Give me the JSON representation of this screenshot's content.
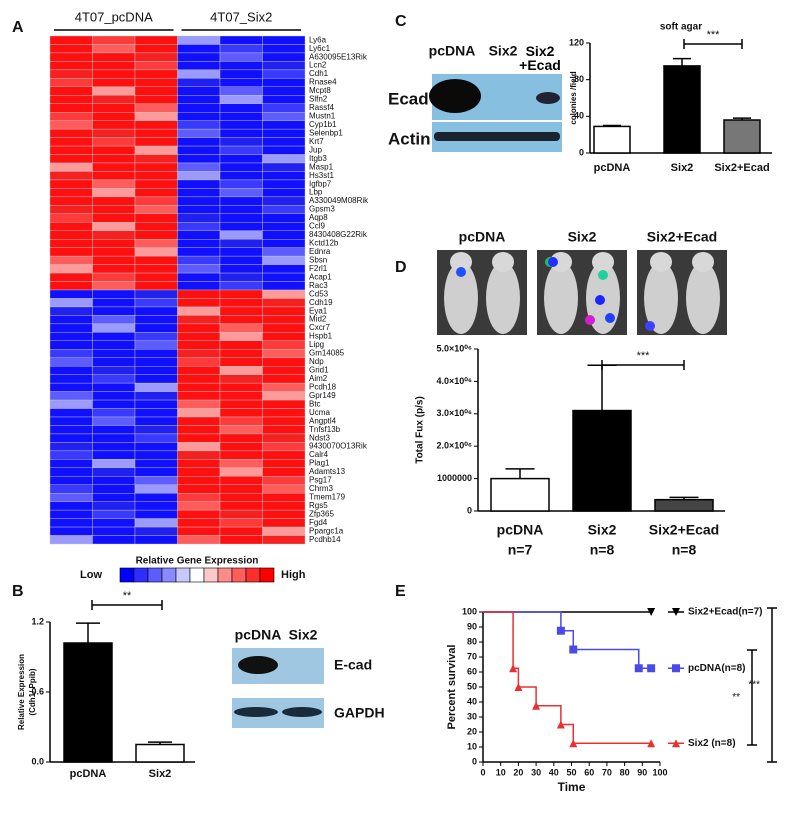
{
  "panel_labels": [
    "A",
    "B",
    "C",
    "D",
    "E"
  ],
  "heatmap": {
    "groups": [
      "4T07_pcDNA",
      "4T07_Six2"
    ],
    "genes": [
      "Ly6a",
      "Ly6c1",
      "A630095E13Rik",
      "Lcn2",
      "Cdh1",
      "Rnase4",
      "Mcpt8",
      "Slfn2",
      "Rassf4",
      "Mustn1",
      "Cyp1b1",
      "Selenbp1",
      "Krt7",
      "Jup",
      "Itgb3",
      "Masp1",
      "Hs3st1",
      "Igfbp7",
      "Lbp",
      "A330049M08Rik",
      "Gpsm3",
      "Aqp8",
      "Ccl9",
      "8430408G22Rik",
      "Kctd12b",
      "Ednra",
      "Sbsn",
      "F2rl1",
      "Acap1",
      "Rac3",
      "Cd53",
      "Cdh19",
      "Eya1",
      "Mid2",
      "Cxcr7",
      "Hspb1",
      "Lipg",
      "Gm14085",
      "Ndp",
      "Grid1",
      "Aim2",
      "Pcdh18",
      "Gpr149",
      "Btc",
      "Ucma",
      "Angptl4",
      "Tnfsf13b",
      "Ndst3",
      "9430070O13Rik",
      "Calr4",
      "Plag1",
      "Adamts13",
      "Psg17",
      "Chrm3",
      "Tmem179",
      "Rgs5",
      "Zfp365",
      "Fgd4",
      "Ppargc1a",
      "Pcdhb14"
    ],
    "legend_title": "Relative Gene Expression",
    "low": "Low",
    "high": "High"
  },
  "blot_b": {
    "lanes": [
      "pcDNA",
      "Six2"
    ],
    "rows": [
      "E-cad",
      "GAPDH"
    ]
  },
  "blot_c": {
    "lanes": [
      "pcDNA",
      "Six2",
      "Six2 +Ecad"
    ],
    "rows": [
      "Ecad",
      "Actin"
    ]
  },
  "imaging_d": {
    "labels": [
      "pcDNA",
      "Six2",
      "Six2+Ecad"
    ]
  },
  "chart_data": [
    {
      "type": "bar",
      "ylabel": [
        "Relative Expression",
        "(Cdh1/ Ppib)"
      ],
      "categories": [
        "pcDNA",
        "Six2"
      ],
      "values": [
        1.02,
        0.15
      ],
      "errors": [
        0.17,
        0.02
      ],
      "colors": [
        "#000000",
        "#ffffff"
      ],
      "ylim": [
        0,
        1.2
      ],
      "yticks": [
        {
          "value": 0,
          "label": "0.0"
        },
        {
          "value": 0.6,
          "label": "0.6"
        },
        {
          "value": 1.2,
          "label": "1.2"
        }
      ],
      "annotation": "**"
    },
    {
      "type": "bar",
      "title": "soft agar",
      "ylabel": [
        "colonies /field"
      ],
      "categories": [
        "pcDNA",
        "Six2",
        "Six2+Ecad"
      ],
      "values": [
        29,
        95,
        36
      ],
      "errors": [
        1,
        8,
        2
      ],
      "colors": [
        "#ffffff",
        "#000000",
        "#777777"
      ],
      "ylim": [
        0,
        120
      ],
      "yticks": [
        0,
        40,
        80,
        120
      ],
      "annotation": "***"
    },
    {
      "type": "bar",
      "ylabel": [
        "Total Fux (p/s)"
      ],
      "categories": [
        "pcDNA",
        "Six2",
        "Six2+Ecad"
      ],
      "n_labels": [
        "n=7",
        "n=8",
        "n=8"
      ],
      "values": [
        1000000,
        3100000,
        350000
      ],
      "errors": [
        300000,
        1400000,
        70000
      ],
      "colors": [
        "#ffffff",
        "#000000",
        "#444444"
      ],
      "ylim": [
        0,
        5000000
      ],
      "yticks": [
        0,
        1000000,
        {
          "value": 2000000,
          "label": "2.0×10⁰⁶"
        },
        {
          "value": 3000000,
          "label": "3.0×10⁰⁶"
        },
        {
          "value": 4000000,
          "label": "4.0×10⁰⁶"
        },
        {
          "value": 5000000,
          "label": "5.0×10⁰⁶"
        }
      ],
      "annotation": "***"
    },
    {
      "type": "survival",
      "xlabel": "Time",
      "ylabel": [
        "Percent survival"
      ],
      "xlim": [
        0,
        100
      ],
      "xticks": [
        0,
        10,
        20,
        30,
        40,
        50,
        60,
        70,
        80,
        90,
        100
      ],
      "ylim": [
        0,
        100
      ],
      "yticks": [
        0,
        10,
        20,
        30,
        40,
        50,
        60,
        70,
        80,
        90,
        100
      ],
      "legend": "right",
      "series": [
        {
          "name": "Six2+Ecad(n=7)",
          "color": "#000000",
          "marker": "triangle-down",
          "x": [
            0,
            95
          ],
          "values": [
            100,
            100
          ]
        },
        {
          "name": "pcDNA(n=8)",
          "color": "#4a4ae8",
          "marker": "square",
          "x": [
            0,
            44,
            51,
            88,
            95
          ],
          "values": [
            100,
            87.5,
            75,
            62.5,
            62.5
          ]
        },
        {
          "name": "Six2 (n=8)",
          "color": "#e83030",
          "marker": "triangle",
          "x": [
            0,
            17,
            20,
            30,
            44,
            51,
            95
          ],
          "values": [
            100,
            62.5,
            50,
            37.5,
            25,
            12.5,
            12.5
          ]
        }
      ],
      "annotations": [
        "**",
        "***"
      ]
    }
  ]
}
